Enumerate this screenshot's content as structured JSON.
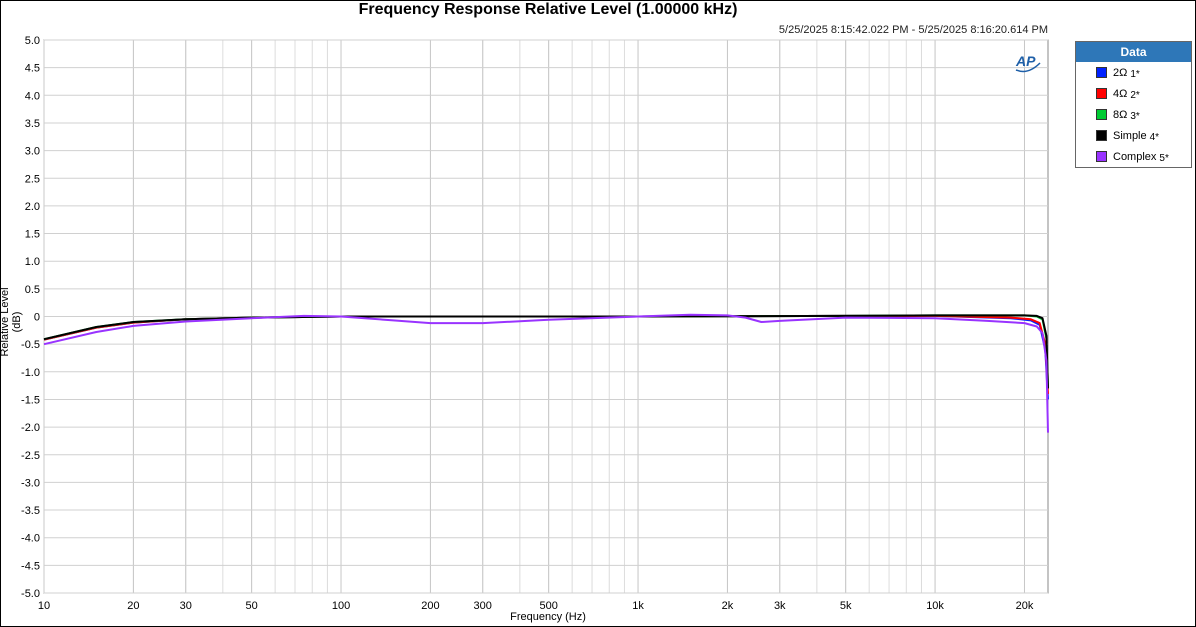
{
  "title": "Frequency Response Relative Level (1.00000 kHz)",
  "subtitle": "5/25/2025 8:15:42.022 PM - 5/25/2025 8:16:20.614 PM",
  "logo_text": "AP",
  "legend": {
    "title": "Data",
    "items": [
      {
        "label": "2Ω",
        "suffix": "1*",
        "color": "#0022ff"
      },
      {
        "label": "4Ω",
        "suffix": "2*",
        "color": "#ff0000"
      },
      {
        "label": "8Ω",
        "suffix": "3*",
        "color": "#00cc33"
      },
      {
        "label": "Simple",
        "suffix": "4*",
        "color": "#000000"
      },
      {
        "label": "Complex",
        "suffix": "5*",
        "color": "#9933ff"
      }
    ]
  },
  "chart_data": {
    "type": "line",
    "title": "Frequency Response Relative Level (1.00000 kHz)",
    "xlabel": "Frequency (Hz)",
    "ylabel": "Relative Level (dB)",
    "xscale": "log",
    "xlim": [
      10,
      24000
    ],
    "ylim": [
      -5.0,
      5.0
    ],
    "grid": true,
    "legend_position": "right",
    "xticks": [
      10,
      20,
      30,
      50,
      100,
      200,
      300,
      500,
      1000,
      2000,
      3000,
      5000,
      10000,
      20000
    ],
    "xtick_labels": [
      "10",
      "20",
      "30",
      "50",
      "100",
      "200",
      "300",
      "500",
      "1k",
      "2k",
      "3k",
      "5k",
      "10k",
      "20k"
    ],
    "yticks": [
      5.0,
      4.5,
      4.0,
      3.5,
      3.0,
      2.5,
      2.0,
      1.5,
      1.0,
      0.5,
      0,
      -0.5,
      -1.0,
      -1.5,
      -2.0,
      -2.5,
      -3.0,
      -3.5,
      -4.0,
      -4.5,
      -5.0
    ],
    "ytick_labels": [
      "5.0",
      "4.5",
      "4.0",
      "3.5",
      "3.0",
      "2.5",
      "2.0",
      "1.5",
      "1.0",
      "0.5",
      "0",
      "-0.5",
      "-1.0",
      "-1.5",
      "-2.0",
      "-2.5",
      "-3.0",
      "-3.5",
      "-4.0",
      "-4.5",
      "-5.0"
    ],
    "series": [
      {
        "name": "2Ω",
        "color": "#0022ff",
        "x": [
          10,
          15,
          20,
          30,
          50,
          100,
          1000,
          5000,
          10000,
          18000,
          21000,
          22500,
          23500,
          24000
        ],
        "y": [
          -0.42,
          -0.2,
          -0.11,
          -0.05,
          -0.02,
          0.0,
          0.0,
          0.01,
          0.01,
          -0.03,
          -0.07,
          -0.15,
          -0.6,
          -1.5
        ]
      },
      {
        "name": "4Ω",
        "color": "#ff0000",
        "x": [
          10,
          15,
          20,
          30,
          50,
          100,
          1000,
          5000,
          10000,
          18000,
          21000,
          22500,
          23500,
          24000
        ],
        "y": [
          -0.42,
          -0.2,
          -0.11,
          -0.05,
          -0.02,
          0.0,
          0.0,
          0.01,
          0.01,
          -0.02,
          -0.05,
          -0.12,
          -0.5,
          -1.4
        ]
      },
      {
        "name": "8Ω",
        "color": "#00cc33",
        "x": [
          10,
          15,
          20,
          30,
          50,
          100,
          1000,
          5000,
          10000,
          20000,
          22000,
          23000,
          23700,
          24000
        ],
        "y": [
          -0.41,
          -0.19,
          -0.1,
          -0.05,
          -0.02,
          0.0,
          0.0,
          0.01,
          0.02,
          0.02,
          0.0,
          -0.05,
          -0.4,
          -1.3
        ]
      },
      {
        "name": "Simple",
        "color": "#000000",
        "x": [
          10,
          15,
          20,
          30,
          50,
          100,
          1000,
          5000,
          10000,
          20000,
          22000,
          23000,
          23700,
          24000
        ],
        "y": [
          -0.41,
          -0.19,
          -0.1,
          -0.05,
          -0.02,
          0.0,
          0.0,
          0.01,
          0.02,
          0.02,
          0.01,
          -0.03,
          -0.35,
          -1.3
        ]
      },
      {
        "name": "Complex",
        "color": "#9933ff",
        "x": [
          10,
          15,
          20,
          30,
          50,
          75,
          100,
          150,
          200,
          300,
          500,
          1000,
          1500,
          2000,
          2300,
          2600,
          3000,
          5000,
          10000,
          15000,
          20000,
          22000,
          23000,
          23700,
          24000
        ],
        "y": [
          -0.5,
          -0.28,
          -0.17,
          -0.09,
          -0.03,
          0.01,
          0.0,
          -0.07,
          -0.12,
          -0.12,
          -0.06,
          0.0,
          0.03,
          0.02,
          -0.02,
          -0.1,
          -0.08,
          -0.02,
          -0.03,
          -0.08,
          -0.12,
          -0.18,
          -0.3,
          -0.8,
          -2.1
        ]
      }
    ]
  }
}
